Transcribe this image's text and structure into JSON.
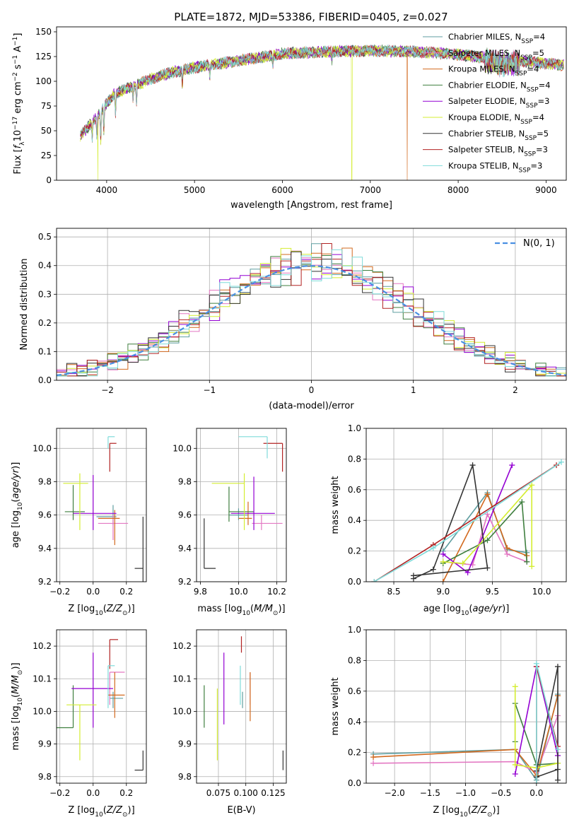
{
  "figure_title": "PLATE=1872, MJD=53386, FIBERID=0405, z=0.027",
  "series": [
    {
      "name": "Chabrier MILES, N$_{SSP}$=4",
      "label_main": "Chabrier MILES, N",
      "label_sub": "SSP",
      "label_end": "=4",
      "color": "#5f9ea0"
    },
    {
      "name": "Salpeter MILES, N$_{SSP}$=5",
      "label_main": "Salpeter MILES, N",
      "label_sub": "SSP",
      "label_end": "=5",
      "color": "#e377c2"
    },
    {
      "name": "Kroupa MILES, N$_{SSP}$=4",
      "label_main": "Kroupa MILES, N",
      "label_sub": "SSP",
      "label_end": "=4",
      "color": "#d2691e"
    },
    {
      "name": "Chabrier ELODIE, N$_{SSP}$=4",
      "label_main": "Chabrier ELODIE, N",
      "label_sub": "SSP",
      "label_end": "=4",
      "color": "#3f7f3f"
    },
    {
      "name": "Salpeter ELODIE, N$_{SSP}$=3",
      "label_main": "Salpeter ELODIE, N",
      "label_sub": "SSP",
      "label_end": "=3",
      "color": "#9400d3"
    },
    {
      "name": "Kroupa ELODIE, N$_{SSP}$=4",
      "label_main": "Kroupa ELODIE, N",
      "label_sub": "SSP",
      "label_end": "=4",
      "color": "#d4ed31"
    },
    {
      "name": "Chabrier STELIB, N$_{SSP}$=5",
      "label_main": "Chabrier STELIB, N",
      "label_sub": "SSP",
      "label_end": "=5",
      "color": "#333333"
    },
    {
      "name": "Salpeter STELIB, N$_{SSP}$=3",
      "label_main": "Salpeter STELIB, N",
      "label_sub": "SSP",
      "label_end": "=3",
      "color": "#b22222"
    },
    {
      "name": "Kroupa STELIB, N$_{SSP}$=3",
      "label_main": "Kroupa STELIB, N",
      "label_sub": "SSP",
      "label_end": "=3",
      "color": "#7fdbda"
    }
  ],
  "chart_data": [
    {
      "id": "spectrum",
      "type": "line",
      "title": "PLATE=1872, MJD=53386, FIBERID=0405, z=0.027",
      "xlabel": "wavelength [Angstrom, rest frame]",
      "ylabel": "Flux [$f_\\lambda 10^{-17}$ erg cm$^{-2}$ s$^{-1}$ A$^{-1}$]",
      "xlim": [
        3430,
        9230
      ],
      "ylim": [
        0,
        155
      ],
      "xticks": [
        4000,
        5000,
        6000,
        7000,
        8000,
        9000
      ],
      "yticks": [
        0,
        25,
        50,
        75,
        100,
        125,
        150
      ],
      "grid": false,
      "legend": "right",
      "continuum": {
        "x": [
          3700,
          3800,
          3900,
          4000,
          4100,
          4300,
          4500,
          4700,
          5000,
          5300,
          5600,
          6000,
          6500,
          7000,
          7500,
          8000,
          8500,
          9000,
          9200
        ],
        "y": [
          45,
          55,
          65,
          78,
          88,
          95,
          102,
          108,
          114,
          118,
          122,
          128,
          130,
          131,
          130,
          127,
          122,
          118,
          116
        ]
      },
      "x_range": [
        3700,
        9200
      ],
      "drops": [
        {
          "series": "Kroupa ELODIE, N$_{SSP}$=4",
          "x": 3900,
          "y": 0
        },
        {
          "series": "Kroupa ELODIE, N$_{SSP}$=4",
          "x": 6790,
          "y": 0
        },
        {
          "series": "Kroupa MILES, N$_{SSP}$=4",
          "x": 7420,
          "y": 0
        }
      ]
    },
    {
      "id": "residuals",
      "type": "area",
      "xlabel": "(data-model)/error",
      "ylabel": "Normed distribution",
      "xlim": [
        -2.5,
        2.5
      ],
      "ylim": [
        0,
        0.53
      ],
      "xticks": [
        -2,
        -1,
        0,
        1,
        2
      ],
      "yticks": [
        0.0,
        0.1,
        0.2,
        0.3,
        0.4,
        0.5
      ],
      "grid": true,
      "legend": "top-right",
      "reference": {
        "name": "$\\mathcal{N}(0,1)$",
        "label": "N(0, 1)",
        "color": "#4a90e2",
        "dash": true
      },
      "bins": {
        "start": -2.5,
        "width": 0.1,
        "count": 50
      }
    },
    {
      "id": "age_vs_Z",
      "type": "scatter",
      "xlabel": "Z [log$_{10}$(Z/Z$_\\odot$)]",
      "ylabel": "age  [log$_{10}$(age/yr)]",
      "xlim": [
        -0.22,
        0.32
      ],
      "ylim": [
        9.2,
        10.12
      ],
      "xticks": [
        -0.2,
        0.0,
        0.2
      ],
      "yticks": [
        9.2,
        9.4,
        9.6,
        9.8,
        10.0
      ],
      "grid": true,
      "points": [
        {
          "s": "Chabrier MILES, N$_{SSP}$=4",
          "x": 0.12,
          "y": 9.59,
          "ex": [
            0.1,
            0.02
          ],
          "ey": [
            0.05,
            0.07
          ]
        },
        {
          "s": "Salpeter MILES, N$_{SSP}$=5",
          "x": 0.12,
          "y": 9.55,
          "ex": [
            0.09,
            0.09
          ],
          "ey": [
            0.1,
            0.05
          ]
        },
        {
          "s": "Kroupa MILES, N$_{SSP}$=4",
          "x": 0.13,
          "y": 9.58,
          "ex": [
            0.1,
            0.03
          ],
          "ey": [
            0.16,
            0.05
          ]
        },
        {
          "s": "Chabrier ELODIE, N$_{SSP}$=4",
          "x": -0.12,
          "y": 9.62,
          "ex": [
            0.05,
            0.07
          ],
          "ey": [
            0.05,
            0.16
          ]
        },
        {
          "s": "Salpeter ELODIE, N$_{SSP}$=3",
          "x": 0.0,
          "y": 9.61,
          "ex": [
            0.12,
            0.14
          ],
          "ey": [
            0.1,
            0.23
          ]
        },
        {
          "s": "Kroupa ELODIE, N$_{SSP}$=4",
          "x": -0.08,
          "y": 9.79,
          "ex": [
            0.1,
            0.05
          ],
          "ey": [
            0.28,
            0.06
          ]
        },
        {
          "s": "Chabrier STELIB, N$_{SSP}$=5",
          "x": 0.3,
          "y": 9.28,
          "ex": [
            0.05,
            0.0
          ],
          "ey": [
            0.08,
            0.31
          ]
        },
        {
          "s": "Salpeter STELIB, N$_{SSP}$=3",
          "x": 0.1,
          "y": 10.03,
          "ex": [
            0.0,
            0.04
          ],
          "ey": [
            0.17,
            0.0
          ]
        },
        {
          "s": "Kroupa STELIB, N$_{SSP}$=3",
          "x": 0.09,
          "y": 10.07,
          "ex": [
            0.0,
            0.04
          ],
          "ey": [
            0.07,
            0.0
          ]
        }
      ]
    },
    {
      "id": "age_vs_mass",
      "type": "scatter",
      "xlabel": "mass [log$_{10}$(M/M$_\\odot$)]",
      "xlim": [
        9.78,
        10.25
      ],
      "ylim": [
        9.2,
        10.12
      ],
      "xticks": [
        9.8,
        10.0,
        10.2
      ],
      "yticks": [
        9.2,
        9.4,
        9.6,
        9.8,
        10.0
      ],
      "grid": true,
      "points": [
        {
          "s": "Chabrier MILES, N$_{SSP}$=4",
          "x": 10.0,
          "y": 9.6,
          "ex": [
            0.05,
            0.05
          ],
          "ey": [
            0.03,
            0.04
          ]
        },
        {
          "s": "Salpeter MILES, N$_{SSP}$=5",
          "x": 10.12,
          "y": 9.55,
          "ex": [
            0.05,
            0.11
          ],
          "ey": [
            0.04,
            0.05
          ]
        },
        {
          "s": "Kroupa MILES, N$_{SSP}$=4",
          "x": 10.05,
          "y": 9.58,
          "ex": [
            0.05,
            0.02
          ],
          "ey": [
            0.04,
            0.1
          ]
        },
        {
          "s": "Chabrier ELODIE, N$_{SSP}$=4",
          "x": 9.95,
          "y": 9.62,
          "ex": [
            0.0,
            0.13
          ],
          "ey": [
            0.06,
            0.15
          ]
        },
        {
          "s": "Salpeter ELODIE, N$_{SSP}$=3",
          "x": 10.08,
          "y": 9.61,
          "ex": [
            0.12,
            0.11
          ],
          "ey": [
            0.1,
            0.22
          ]
        },
        {
          "s": "Kroupa ELODIE, N$_{SSP}$=4",
          "x": 10.03,
          "y": 9.79,
          "ex": [
            0.17,
            0.0
          ],
          "ey": [
            0.28,
            0.06
          ]
        },
        {
          "s": "Chabrier STELIB, N$_{SSP}$=5",
          "x": 9.82,
          "y": 9.28,
          "ex": [
            0.0,
            0.06
          ],
          "ey": [
            0.0,
            0.3
          ]
        },
        {
          "s": "Salpeter STELIB, N$_{SSP}$=3",
          "x": 10.23,
          "y": 10.03,
          "ex": [
            0.1,
            0.0
          ],
          "ey": [
            0.17,
            0.0
          ]
        },
        {
          "s": "Kroupa STELIB, N$_{SSP}$=3",
          "x": 10.15,
          "y": 10.07,
          "ex": [
            0.15,
            0.0
          ],
          "ey": [
            0.13,
            0.0
          ]
        }
      ]
    },
    {
      "id": "weight_vs_age",
      "type": "line",
      "xlabel": "age  [log$_{10}$(age/yr)]",
      "ylabel": "mass weight",
      "xlim": [
        8.22,
        10.25
      ],
      "ylim": [
        0,
        1.0
      ],
      "xticks": [
        8.5,
        9.0,
        9.5,
        10.0
      ],
      "yticks": [
        0.0,
        0.2,
        0.4,
        0.6,
        0.8,
        1.0
      ],
      "grid": true,
      "series": [
        {
          "s": "Chabrier MILES, N$_{SSP}$=4",
          "x": [
            9.0,
            9.45,
            9.65,
            9.85
          ],
          "y": [
            0.2,
            0.58,
            0.21,
            0.19
          ]
        },
        {
          "s": "Salpeter MILES, N$_{SSP}$=5",
          "x": [
            9.0,
            9.3,
            9.45,
            9.65,
            9.85
          ],
          "y": [
            0.13,
            0.11,
            0.44,
            0.18,
            0.13
          ]
        },
        {
          "s": "Kroupa MILES, N$_{SSP}$=4",
          "x": [
            9.0,
            9.45,
            9.65,
            9.85
          ],
          "y": [
            0.0,
            0.57,
            0.22,
            0.17
          ]
        },
        {
          "s": "Chabrier ELODIE, N$_{SSP}$=4",
          "x": [
            9.0,
            9.45,
            9.8,
            9.85
          ],
          "y": [
            0.12,
            0.27,
            0.52,
            0.13
          ]
        },
        {
          "s": "Salpeter ELODIE, N$_{SSP}$=3",
          "x": [
            9.0,
            9.25,
            9.7
          ],
          "y": [
            0.18,
            0.06,
            0.76
          ]
        },
        {
          "s": "Kroupa ELODIE, N$_{SSP}$=4",
          "x": [
            9.0,
            9.2,
            9.9,
            9.9
          ],
          "y": [
            0.13,
            0.12,
            0.63,
            0.1
          ]
        },
        {
          "s": "Chabrier STELIB, N$_{SSP}$=5",
          "x": [
            8.7,
            8.9,
            9.3,
            9.45,
            8.7
          ],
          "y": [
            0.02,
            0.08,
            0.76,
            0.09,
            0.04
          ]
        },
        {
          "s": "Salpeter STELIB, N$_{SSP}$=3",
          "x": [
            8.3,
            8.9,
            10.15
          ],
          "y": [
            0.0,
            0.24,
            0.76
          ]
        },
        {
          "s": "Kroupa STELIB, N$_{SSP}$=3",
          "x": [
            8.3,
            8.9,
            10.2
          ],
          "y": [
            0.0,
            0.22,
            0.78
          ]
        }
      ]
    },
    {
      "id": "mass_vs_Z",
      "type": "scatter",
      "xlabel": "Z [log$_{10}$(Z/Z$_\\odot$)]",
      "ylabel": "mass [log$_{10}$(M/M$_\\odot$)]",
      "xlim": [
        -0.22,
        0.32
      ],
      "ylim": [
        9.78,
        10.25
      ],
      "xticks": [
        -0.2,
        0.0,
        0.2
      ],
      "yticks": [
        9.8,
        9.9,
        10.0,
        10.1,
        10.2
      ],
      "grid": true,
      "points": [
        {
          "s": "Chabrier MILES, N$_{SSP}$=4",
          "x": 0.12,
          "y": 10.04,
          "ex": [
            0.02,
            0.06
          ],
          "ey": [
            0.03,
            0.02
          ]
        },
        {
          "s": "Salpeter MILES, N$_{SSP}$=5",
          "x": 0.1,
          "y": 10.12,
          "ex": [
            0.0,
            0.09
          ],
          "ey": [
            0.1,
            0.0
          ]
        },
        {
          "s": "Kroupa MILES, N$_{SSP}$=4",
          "x": 0.13,
          "y": 10.05,
          "ex": [
            0.04,
            0.06
          ],
          "ey": [
            0.07,
            0.07
          ]
        },
        {
          "s": "Chabrier ELODIE, N$_{SSP}$=4",
          "x": -0.12,
          "y": 9.95,
          "ex": [
            0.1,
            0.0
          ],
          "ey": [
            0.0,
            0.13
          ]
        },
        {
          "s": "Salpeter ELODIE, N$_{SSP}$=3",
          "x": 0.0,
          "y": 10.07,
          "ex": [
            0.13,
            0.12
          ],
          "ey": [
            0.12,
            0.11
          ]
        },
        {
          "s": "Kroupa ELODIE, N$_{SSP}$=4",
          "x": -0.08,
          "y": 10.02,
          "ex": [
            0.08,
            0.1
          ],
          "ey": [
            0.17,
            0.0
          ]
        },
        {
          "s": "Chabrier STELIB, N$_{SSP}$=5",
          "x": 0.3,
          "y": 9.82,
          "ex": [
            0.05,
            0.0
          ],
          "ey": [
            0.0,
            0.06
          ]
        },
        {
          "s": "Salpeter STELIB, N$_{SSP}$=3",
          "x": 0.1,
          "y": 10.22,
          "ex": [
            0.0,
            0.05
          ],
          "ey": [
            0.09,
            0.0
          ]
        },
        {
          "s": "Kroupa STELIB, N$_{SSP}$=3",
          "x": 0.09,
          "y": 10.14,
          "ex": [
            0.0,
            0.04
          ],
          "ey": [
            0.13,
            0.0
          ]
        }
      ]
    },
    {
      "id": "mass_vs_ebv",
      "type": "scatter",
      "xlabel": "E(B-V)",
      "xlim": [
        0.055,
        0.137
      ],
      "ylim": [
        9.78,
        10.25
      ],
      "xticks": [
        0.075,
        0.1,
        0.125
      ],
      "xtick_labels": [
        "0.075",
        "0.100",
        "0.125"
      ],
      "yticks": [
        9.8,
        9.9,
        10.0,
        10.1,
        10.2
      ],
      "grid": true,
      "points": [
        {
          "s": "Chabrier MILES, N$_{SSP}$=4",
          "x": 0.097,
          "y": 10.04,
          "ey": [
            0.03,
            0.02
          ]
        },
        {
          "s": "Salpeter MILES, N$_{SSP}$=5",
          "x": 0.104,
          "y": 10.12,
          "ey": [
            0.1,
            0.0
          ]
        },
        {
          "s": "Kroupa MILES, N$_{SSP}$=4",
          "x": 0.104,
          "y": 10.05,
          "ey": [
            0.08,
            0.07
          ]
        },
        {
          "s": "Chabrier ELODIE, N$_{SSP}$=4",
          "x": 0.062,
          "y": 10.0,
          "ey": [
            0.05,
            0.08
          ]
        },
        {
          "s": "Salpeter ELODIE, N$_{SSP}$=3",
          "x": 0.08,
          "y": 10.07,
          "ey": [
            0.11,
            0.11
          ]
        },
        {
          "s": "Kroupa ELODIE, N$_{SSP}$=4",
          "x": 0.074,
          "y": 9.96,
          "ey": [
            0.11,
            0.11
          ]
        },
        {
          "s": "Chabrier STELIB, N$_{SSP}$=5",
          "x": 0.134,
          "y": 9.84,
          "ey": [
            0.02,
            0.04
          ]
        },
        {
          "s": "Salpeter STELIB, N$_{SSP}$=3",
          "x": 0.096,
          "y": 10.18,
          "ey": [
            0.0,
            0.05
          ]
        },
        {
          "s": "Kroupa STELIB, N$_{SSP}$=3",
          "x": 0.095,
          "y": 10.09,
          "ey": [
            0.07,
            0.05
          ]
        }
      ]
    },
    {
      "id": "weight_vs_Z",
      "type": "line",
      "xlabel": "Z [log$_{10}$(Z/Z$_\\odot$)]",
      "ylabel": "mass weight",
      "xlim": [
        -2.4,
        0.42
      ],
      "ylim": [
        0,
        1.0
      ],
      "xticks": [
        -2.0,
        -1.5,
        -1.0,
        -0.5,
        0.0
      ],
      "yticks": [
        0.0,
        0.2,
        0.4,
        0.6,
        0.8,
        1.0
      ],
      "grid": true,
      "series": [
        {
          "s": "Chabrier MILES, N$_{SSP}$=4",
          "x": [
            -2.3,
            -0.3,
            0.0,
            0.3
          ],
          "y": [
            0.19,
            0.22,
            0.02,
            0.58
          ]
        },
        {
          "s": "Salpeter MILES, N$_{SSP}$=5",
          "x": [
            -2.3,
            -0.3,
            0.0,
            0.3,
            0.3
          ],
          "y": [
            0.13,
            0.14,
            0.07,
            0.44,
            0.13
          ]
        },
        {
          "s": "Kroupa MILES, N$_{SSP}$=4",
          "x": [
            -2.3,
            -0.3,
            0.0,
            0.3
          ],
          "y": [
            0.17,
            0.22,
            0.05,
            0.57
          ]
        },
        {
          "s": "Chabrier ELODIE, N$_{SSP}$=4",
          "x": [
            -0.3,
            -0.3,
            0.0,
            0.3
          ],
          "y": [
            0.27,
            0.52,
            0.12,
            0.13
          ]
        },
        {
          "s": "Salpeter ELODIE, N$_{SSP}$=3",
          "x": [
            -0.3,
            0.0,
            0.3
          ],
          "y": [
            0.06,
            0.76,
            0.18
          ]
        },
        {
          "s": "Kroupa ELODIE, N$_{SSP}$=4",
          "x": [
            -0.3,
            -0.3,
            0.0,
            0.3
          ],
          "y": [
            0.63,
            0.12,
            0.1,
            0.13
          ]
        },
        {
          "s": "Chabrier STELIB, N$_{SSP}$=5",
          "x": [
            0.0,
            0.3,
            0.3,
            0.3,
            0.0
          ],
          "y": [
            0.08,
            0.76,
            0.02,
            0.09,
            0.04
          ]
        },
        {
          "s": "Salpeter STELIB, N$_{SSP}$=3",
          "x": [
            0.0,
            0.0,
            0.3
          ],
          "y": [
            0.0,
            0.76,
            0.24
          ]
        },
        {
          "s": "Kroupa STELIB, N$_{SSP}$=3",
          "x": [
            0.0,
            0.0,
            0.3
          ],
          "y": [
            0.0,
            0.78,
            0.22
          ]
        }
      ]
    }
  ]
}
